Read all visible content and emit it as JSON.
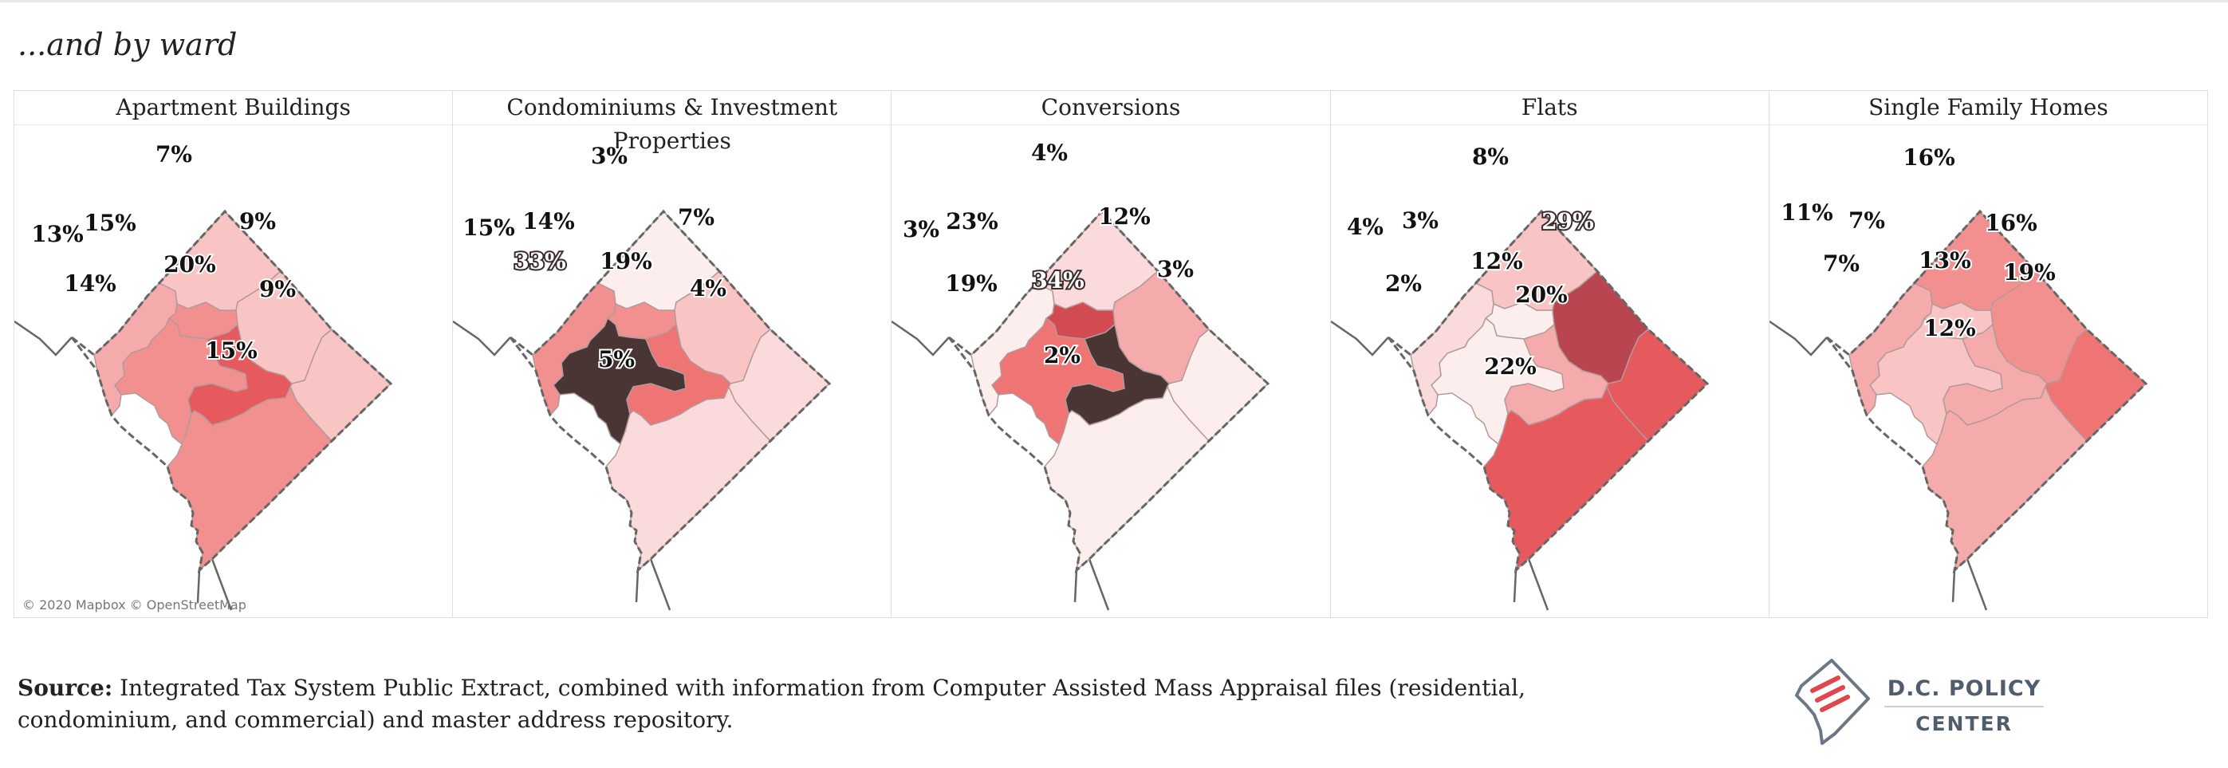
{
  "subtitle": "...and by ward",
  "attribution": "© 2020 Mapbox © OpenStreetMap",
  "source": {
    "label": "Source:",
    "text": " Integrated Tax System Public Extract, combined with information from Computer Assisted Mass Appraisal files (residential, condominium, and commercial) and master address repository."
  },
  "logo": {
    "line1": "D.C. POLICY",
    "line2": "CENTER"
  },
  "colors": {
    "scale": [
      "#fdeeee",
      "#fadada",
      "#f8c4c4",
      "#f5abab",
      "#f29090",
      "#ef7474",
      "#e65a5e",
      "#d24a52",
      "#b84550",
      "#7d3b42",
      "#4a3535"
    ],
    "border": "#b39a9a",
    "coast": "#666666"
  },
  "panels": [
    {
      "title": "Apartment Buildings",
      "wards": [
        {
          "ward": "1",
          "value": 15,
          "label": "15%"
        },
        {
          "ward": "2",
          "value": 14,
          "label": "14%"
        },
        {
          "ward": "3",
          "value": 13,
          "label": "13%"
        },
        {
          "ward": "4",
          "value": 7,
          "label": "7%"
        },
        {
          "ward": "5",
          "value": 9,
          "label": "9%"
        },
        {
          "ward": "6",
          "value": 20,
          "label": "20%"
        },
        {
          "ward": "7",
          "value": 9,
          "label": "9%"
        },
        {
          "ward": "8",
          "value": 15,
          "label": "15%"
        }
      ]
    },
    {
      "title": "Condominiums & Investment Properties",
      "wards": [
        {
          "ward": "1",
          "value": 14,
          "label": "14%"
        },
        {
          "ward": "2",
          "value": 33,
          "label": "33%"
        },
        {
          "ward": "3",
          "value": 15,
          "label": "15%"
        },
        {
          "ward": "4",
          "value": 3,
          "label": "3%"
        },
        {
          "ward": "5",
          "value": 7,
          "label": "7%"
        },
        {
          "ward": "6",
          "value": 19,
          "label": "19%"
        },
        {
          "ward": "7",
          "value": 4,
          "label": "4%"
        },
        {
          "ward": "8",
          "value": 5,
          "label": "5%"
        }
      ]
    },
    {
      "title": "Conversions",
      "wards": [
        {
          "ward": "1",
          "value": 23,
          "label": "23%"
        },
        {
          "ward": "2",
          "value": 19,
          "label": "19%"
        },
        {
          "ward": "3",
          "value": 3,
          "label": "3%"
        },
        {
          "ward": "4",
          "value": 4,
          "label": "4%"
        },
        {
          "ward": "5",
          "value": 12,
          "label": "12%"
        },
        {
          "ward": "6",
          "value": 34,
          "label": "34%"
        },
        {
          "ward": "7",
          "value": 3,
          "label": "3%"
        },
        {
          "ward": "8",
          "value": 2,
          "label": "2%"
        }
      ]
    },
    {
      "title": "Flats",
      "wards": [
        {
          "ward": "1",
          "value": 3,
          "label": "3%"
        },
        {
          "ward": "2",
          "value": 2,
          "label": "2%"
        },
        {
          "ward": "3",
          "value": 4,
          "label": "4%"
        },
        {
          "ward": "4",
          "value": 8,
          "label": "8%"
        },
        {
          "ward": "5",
          "value": 29,
          "label": "29%"
        },
        {
          "ward": "6",
          "value": 12,
          "label": "12%"
        },
        {
          "ward": "7",
          "value": 20,
          "label": "20%"
        },
        {
          "ward": "8",
          "value": 22,
          "label": "22%"
        }
      ]
    },
    {
      "title": "Single Family Homes",
      "wards": [
        {
          "ward": "1",
          "value": 7,
          "label": "7%"
        },
        {
          "ward": "2",
          "value": 7,
          "label": "7%"
        },
        {
          "ward": "3",
          "value": 11,
          "label": "11%"
        },
        {
          "ward": "4",
          "value": 16,
          "label": "16%"
        },
        {
          "ward": "5",
          "value": 16,
          "label": "16%"
        },
        {
          "ward": "6",
          "value": 13,
          "label": "13%"
        },
        {
          "ward": "7",
          "value": 19,
          "label": "19%"
        },
        {
          "ward": "8",
          "value": 12,
          "label": "12%"
        }
      ]
    }
  ]
}
